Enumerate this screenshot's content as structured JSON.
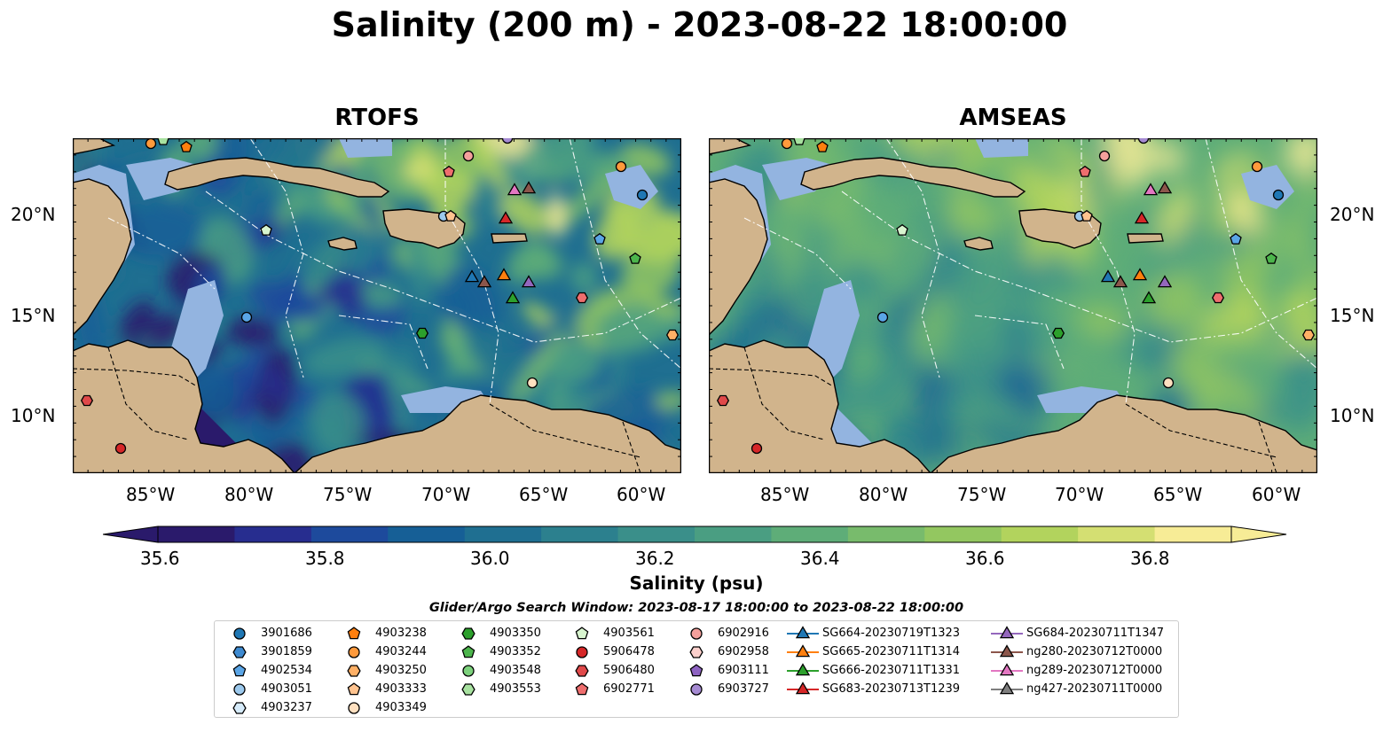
{
  "title": "Salinity (200 m) - 2023-08-22 18:00:00",
  "panels": [
    {
      "title": "RTOFS",
      "palette": "rtofs"
    },
    {
      "title": "AMSEAS",
      "palette": "amseas"
    }
  ],
  "lon_ticks": [
    "85°W",
    "80°W",
    "75°W",
    "70°W",
    "65°W",
    "60°W"
  ],
  "lat_ticks": [
    "20°N",
    "15°N",
    "10°N"
  ],
  "colorbar": {
    "label": "Salinity (psu)",
    "ticks": [
      "35.6",
      "35.8",
      "36.0",
      "36.2",
      "36.4",
      "36.6",
      "36.8"
    ],
    "colors": [
      "#2a1a6b",
      "#272d8f",
      "#1d4a9c",
      "#165f96",
      "#1f6f91",
      "#2c808e",
      "#3a8f8a",
      "#4a9e82",
      "#5ead78",
      "#78bb6c",
      "#93c760",
      "#b2d35d",
      "#d4df72",
      "#f7ec96"
    ]
  },
  "legend": {
    "title": "Glider/Argo Search Window: 2023-08-17 18:00:00 to 2023-08-22 18:00:00",
    "columns": [
      [
        {
          "label": "3901686",
          "shape": "circle",
          "color": "#1f77b4"
        },
        {
          "label": "3901859",
          "shape": "hexagon",
          "color": "#3e8ad0"
        },
        {
          "label": "4902534",
          "shape": "pentagon",
          "color": "#5aa5e6"
        },
        {
          "label": "4903051",
          "shape": "circle",
          "color": "#9cc9ed"
        },
        {
          "label": "4903237",
          "shape": "hexagon",
          "color": "#d6ebfa"
        }
      ],
      [
        {
          "label": "4903238",
          "shape": "pentagon",
          "color": "#ff7f0e"
        },
        {
          "label": "4903244",
          "shape": "circle",
          "color": "#ff9a3c"
        },
        {
          "label": "4903250",
          "shape": "hexagon",
          "color": "#ffb066"
        },
        {
          "label": "4903333",
          "shape": "pentagon",
          "color": "#ffc38f"
        },
        {
          "label": "4903349",
          "shape": "circle",
          "color": "#ffe0c0"
        }
      ],
      [
        {
          "label": "4903350",
          "shape": "hexagon",
          "color": "#2ca02c"
        },
        {
          "label": "4903352",
          "shape": "pentagon",
          "color": "#4cb54c"
        },
        {
          "label": "4903548",
          "shape": "circle",
          "color": "#7cd17c"
        },
        {
          "label": "4903553",
          "shape": "hexagon",
          "color": "#a8e2a0"
        }
      ],
      [
        {
          "label": "4903561",
          "shape": "pentagon",
          "color": "#d8f5cf"
        },
        {
          "label": "5906478",
          "shape": "circle",
          "color": "#d62728"
        },
        {
          "label": "5906480",
          "shape": "hexagon",
          "color": "#e0494a"
        },
        {
          "label": "6902771",
          "shape": "pentagon",
          "color": "#ee6e6e"
        }
      ],
      [
        {
          "label": "6902916",
          "shape": "circle",
          "color": "#f4a09c"
        },
        {
          "label": "6902958",
          "shape": "hexagon",
          "color": "#fcd0cc"
        },
        {
          "label": "6903111",
          "shape": "pentagon",
          "color": "#8e63c2"
        },
        {
          "label": "6903727",
          "shape": "circle",
          "color": "#a68bd3"
        }
      ],
      [
        {
          "label": "SG664-20230719T1323",
          "shape": "triangle",
          "color": "#1f77b4"
        },
        {
          "label": "SG665-20230711T1314",
          "shape": "triangle",
          "color": "#ff7f0e"
        },
        {
          "label": "SG666-20230711T1331",
          "shape": "triangle",
          "color": "#2ca02c"
        },
        {
          "label": "SG683-20230713T1239",
          "shape": "triangle",
          "color": "#d62728"
        }
      ],
      [
        {
          "label": "SG684-20230711T1347",
          "shape": "triangle",
          "color": "#9467bd"
        },
        {
          "label": "ng280-20230712T0000",
          "shape": "triangle",
          "color": "#8c564b"
        },
        {
          "label": "ng289-20230712T0000",
          "shape": "triangle",
          "color": "#e377c2"
        },
        {
          "label": "ng427-20230711T0000",
          "shape": "triangle",
          "color": "#7f7f7f"
        }
      ]
    ]
  },
  "colors": {
    "land": "#d1b48c",
    "water_mask": "#93b4e0",
    "coast": "#000000"
  }
}
